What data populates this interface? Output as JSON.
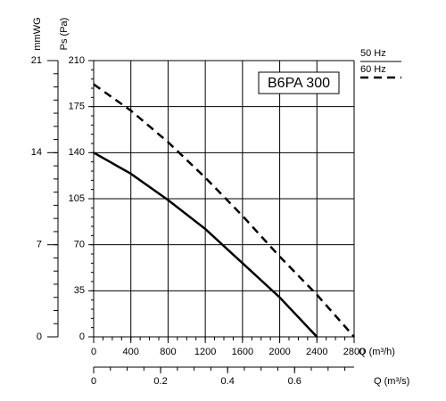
{
  "chart_data": {
    "type": "line",
    "title": "B6PA 300",
    "x": [
      0,
      400,
      800,
      1200,
      1600,
      2000,
      2400,
      2800
    ],
    "series": [
      {
        "name": "50 Hz",
        "color": "#000000",
        "style": "solid",
        "values": [
          140,
          124,
          104,
          82,
          56,
          30,
          0,
          null
        ]
      },
      {
        "name": "60 Hz",
        "color": "#000000",
        "style": "dashed",
        "values": [
          192,
          172,
          148,
          121,
          92,
          61,
          32,
          0
        ]
      }
    ],
    "xlabel": "Q (m³/h)",
    "xlim": [
      0,
      2800
    ],
    "xticks": [
      0,
      400,
      800,
      1200,
      1600,
      2000,
      2400,
      2800
    ],
    "ylabel": "Ps (Pa)",
    "ylim": [
      0,
      210
    ],
    "yticks": [
      0,
      35,
      70,
      105,
      140,
      175,
      210
    ],
    "y2label": "mmWG",
    "y2lim": [
      0,
      21
    ],
    "y2ticks": [
      0,
      7,
      14,
      21
    ],
    "x2label": "Q (m³/s)",
    "x2lim": [
      0,
      0.7778
    ],
    "x2ticks": [
      0,
      0.2,
      0.4,
      0.6
    ],
    "grid": true
  }
}
